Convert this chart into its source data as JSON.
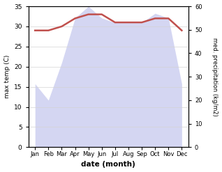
{
  "months": [
    "Jan",
    "Feb",
    "Mar",
    "Apr",
    "May",
    "Jun",
    "Jul",
    "Aug",
    "Sep",
    "Oct",
    "Nov",
    "Dec"
  ],
  "temp": [
    29.0,
    29.0,
    30.0,
    32.0,
    33.0,
    33.0,
    31.0,
    31.0,
    31.0,
    32.0,
    32.0,
    29.0
  ],
  "precip": [
    27,
    20,
    36,
    55,
    60,
    55,
    53,
    53,
    53,
    57,
    55,
    27
  ],
  "temp_color": "#c0504d",
  "precip_fill_color": "#c6c9ee",
  "precip_alpha": 0.75,
  "left_ylabel": "max temp (C)",
  "right_ylabel": "med. precipitation (kg/m2)",
  "xlabel": "date (month)",
  "ylim_left": [
    0,
    35
  ],
  "ylim_right": [
    0,
    60
  ],
  "yticks_left": [
    0,
    5,
    10,
    15,
    20,
    25,
    30,
    35
  ],
  "yticks_right": [
    0,
    10,
    20,
    30,
    40,
    50,
    60
  ],
  "line_width": 1.8,
  "figsize": [
    3.18,
    2.47
  ],
  "dpi": 100
}
